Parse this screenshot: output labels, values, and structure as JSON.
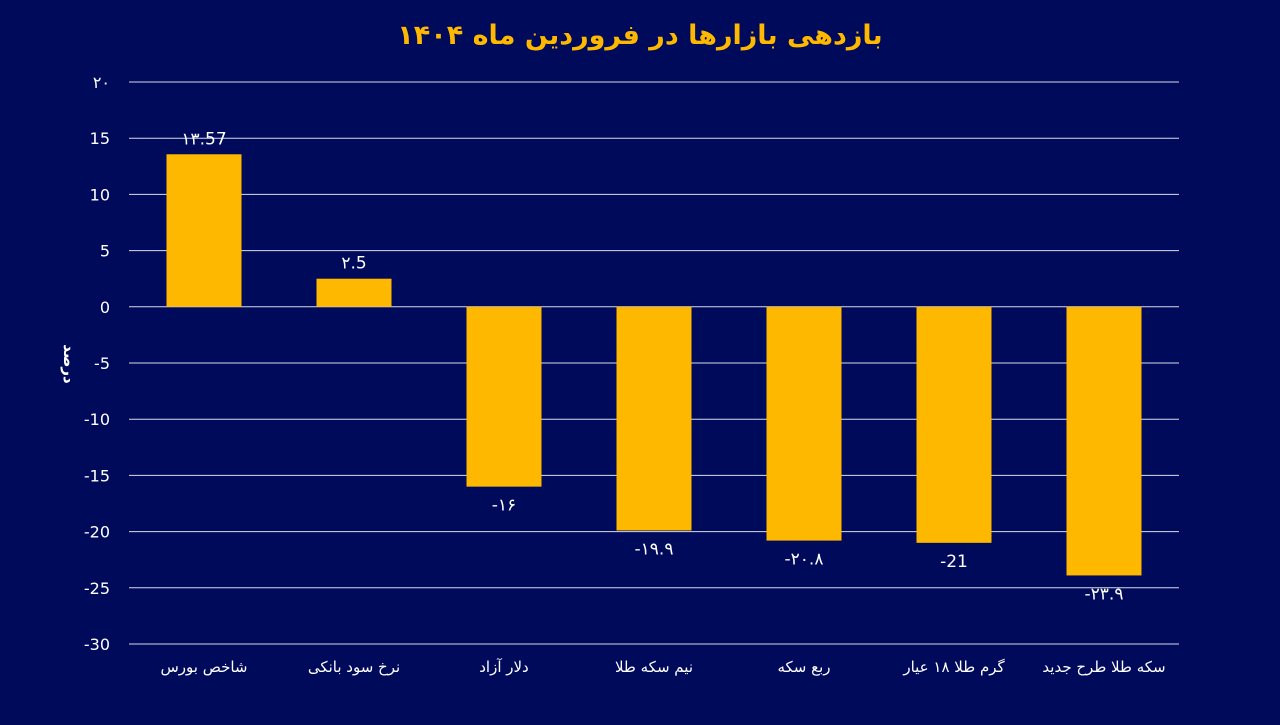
{
  "chart_data": {
    "type": "bar",
    "title": "بازدهی بازارها در فروردین ماه ۱۴۰۴",
    "ylabel": "درصد",
    "xlabel": "",
    "ylim": [
      -30,
      20
    ],
    "yticks": [
      20,
      15,
      10,
      5,
      0,
      -5,
      -10,
      -15,
      -20,
      -25,
      -30
    ],
    "ytick_labels": [
      "۲۰",
      "15",
      "10",
      "5",
      "0",
      "-5",
      "-10",
      "-15",
      "-20",
      "-25",
      "-30"
    ],
    "categories": [
      "شاخص بورس",
      "نرخ سود بانکی",
      "دلار آزاد",
      "نیم سکه طلا",
      "ربع سکه",
      "گرم طلا ۱۸ عیار",
      "سکه طلا طرح  جدید"
    ],
    "values": [
      13.57,
      2.5,
      -16,
      -19.9,
      -20.8,
      -21,
      -23.9
    ],
    "value_labels": [
      "۱۳.57",
      "۲.5",
      "-۱۶",
      "-۱۹.۹",
      "-۲۰.۸",
      "-21",
      "-۲۳.۹"
    ],
    "grid": true,
    "legend": "none"
  },
  "colors": {
    "background": "#000a5a",
    "bar": "#ffb800",
    "title": "#ffb800",
    "grid": "#ffffff",
    "text": "#ffffff"
  }
}
